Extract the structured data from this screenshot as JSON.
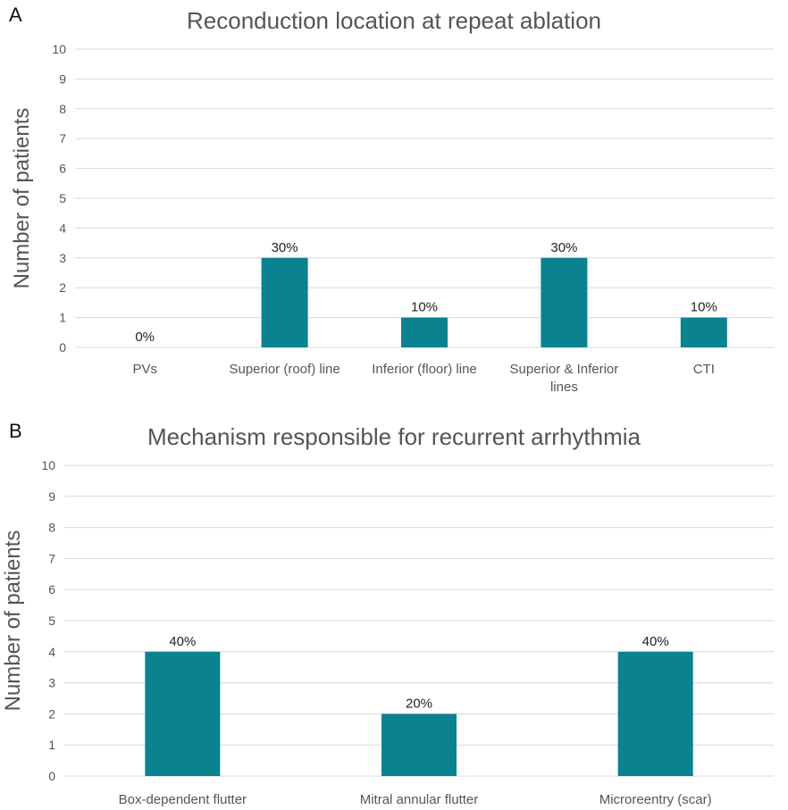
{
  "panel_a": {
    "letter": "A"
  },
  "panel_b": {
    "letter": "B"
  },
  "colors": {
    "bar": "#0a8290",
    "grid": "#d9d9d9",
    "text": "#555555"
  },
  "chart_data": [
    {
      "type": "bar",
      "title": "Reconduction location at repeat ablation",
      "ylabel": "Number of patients",
      "xlabel": "",
      "ylim": [
        0,
        10
      ],
      "yticks": [
        "0",
        "1",
        "2",
        "3",
        "4",
        "5",
        "6",
        "7",
        "8",
        "9",
        "10"
      ],
      "grid": true,
      "categories": [
        "PVs",
        "Superior (roof) line",
        "Inferior (floor) line",
        "Superior & Inferior lines",
        "CTI"
      ],
      "values": [
        0,
        3,
        1,
        3,
        1
      ],
      "data_labels": [
        "0%",
        "30%",
        "10%",
        "30%",
        "10%"
      ]
    },
    {
      "type": "bar",
      "title": "Mechanism responsible for recurrent arrhythmia",
      "ylabel": "Number of patients",
      "xlabel": "",
      "ylim": [
        0,
        10
      ],
      "yticks": [
        "0",
        "1",
        "2",
        "3",
        "4",
        "5",
        "6",
        "7",
        "8",
        "9",
        "10"
      ],
      "grid": true,
      "categories": [
        "Box-dependent flutter",
        "Mitral annular flutter",
        "Microreentry (scar)"
      ],
      "values": [
        4,
        2,
        4
      ],
      "data_labels": [
        "40%",
        "20%",
        "40%"
      ]
    }
  ]
}
